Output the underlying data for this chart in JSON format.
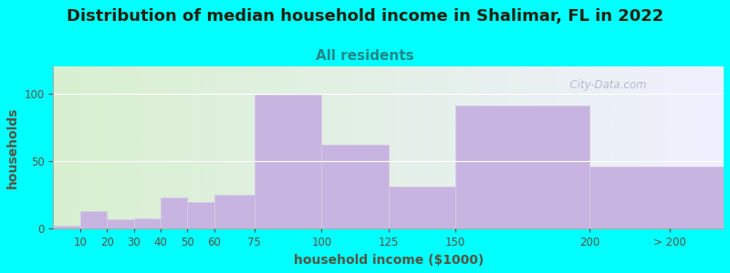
{
  "title": "Distribution of median household income in Shalimar, FL in 2022",
  "subtitle": "All residents",
  "xlabel": "household income ($1000)",
  "ylabel": "households",
  "background_color": "#00FFFF",
  "plot_bg_color_left": "#d8f0d0",
  "plot_bg_color_right": "#f0f0ff",
  "bar_color": "#c8b4e0",
  "bar_edge_color": "#d8c8e8",
  "watermark": "  City-Data.com",
  "bin_edges": [
    0,
    10,
    20,
    30,
    40,
    50,
    60,
    75,
    100,
    125,
    150,
    200,
    250
  ],
  "tick_positions": [
    10,
    20,
    30,
    40,
    50,
    60,
    75,
    100,
    125,
    150,
    200
  ],
  "tick_labels": [
    "10",
    "20",
    "30",
    "40",
    "50",
    "60",
    "75",
    "100",
    "125",
    "150",
    "200"
  ],
  "last_tick_label": "> 200",
  "values": [
    2,
    13,
    7,
    8,
    23,
    20,
    25,
    99,
    62,
    31,
    91,
    46
  ],
  "ylim": [
    0,
    120
  ],
  "yticks": [
    0,
    50,
    100
  ],
  "title_fontsize": 13,
  "subtitle_fontsize": 11,
  "axis_label_fontsize": 10,
  "tick_fontsize": 8.5,
  "tick_color": "#555544",
  "title_color": "#222211",
  "subtitle_color": "#228888"
}
